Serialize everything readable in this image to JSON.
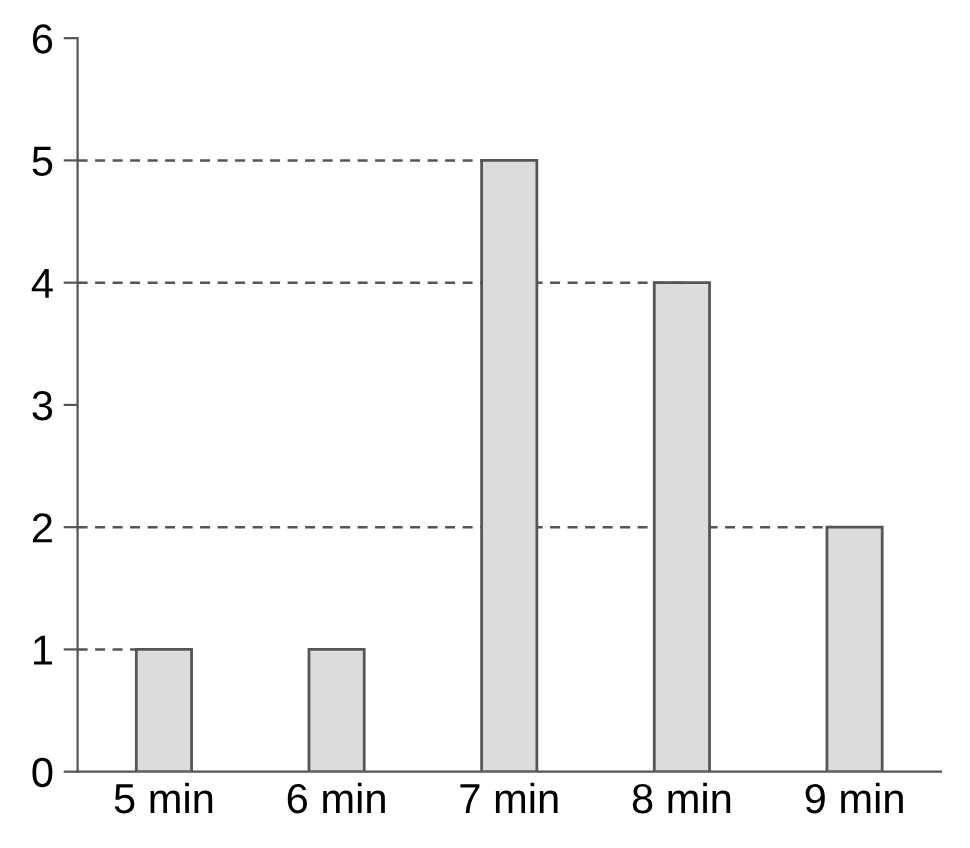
{
  "chart_data": {
    "type": "bar",
    "categories": [
      "5 min",
      "6 min",
      "7 min",
      "8 min",
      "9 min"
    ],
    "values": [
      1,
      1,
      5,
      4,
      2
    ],
    "color": "#dcdcdc",
    "ylim": [
      0,
      6
    ],
    "yticks": [
      0,
      1,
      2,
      3,
      4,
      5,
      6
    ],
    "ref_lines": [
      {
        "axis": "y",
        "value": 1,
        "color": "#555555",
        "line_style": "dashed"
      },
      {
        "axis": "y",
        "value": 2,
        "color": "#555555",
        "line_style": "dashed"
      },
      {
        "axis": "y",
        "value": 4,
        "color": "#555555",
        "line_style": "dashed"
      },
      {
        "axis": "y",
        "value": 5,
        "color": "#555555",
        "line_style": "dashed"
      }
    ]
  }
}
